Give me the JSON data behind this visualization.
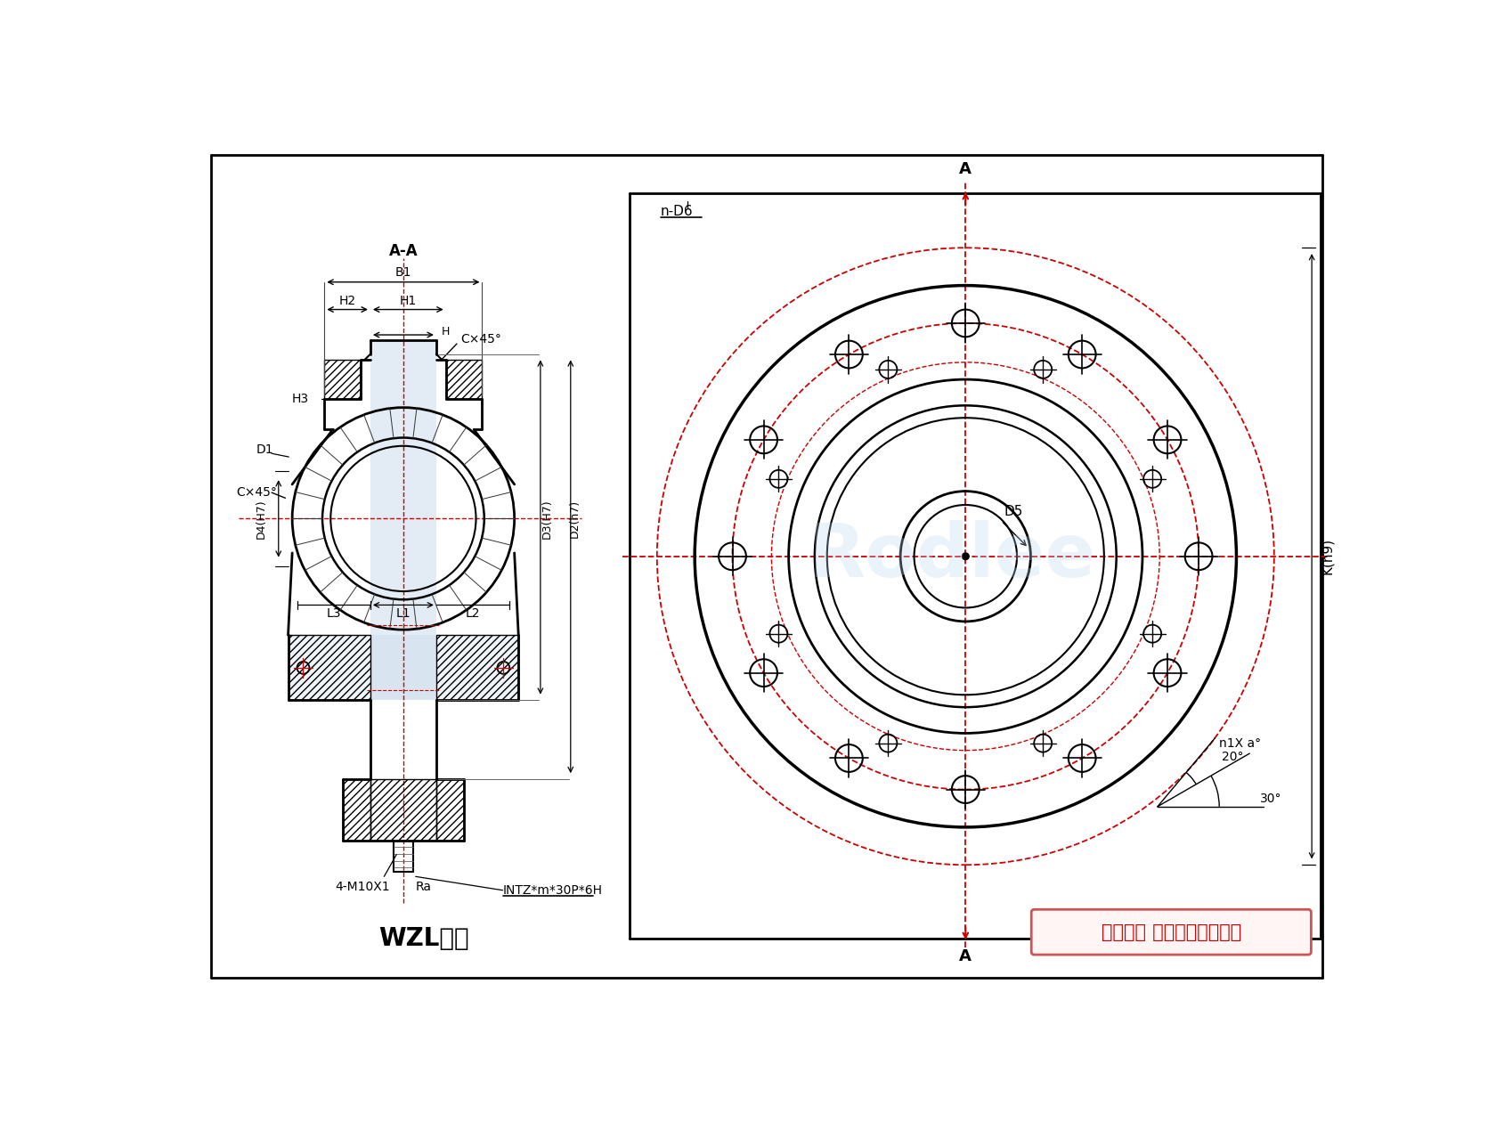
{
  "bg_color": "#ffffff",
  "line_color": "#000000",
  "red_color": "#cc0000",
  "blue_color": "#b0c8e0",
  "title": "WZL系列",
  "copyright": "版权所有 侵权必被严厉追究",
  "watermark": "Rodlee",
  "left_labels": {
    "AA": "A-A",
    "B1": "B1",
    "H1": "H1",
    "H2": "H2",
    "H": "H",
    "H3": "H3",
    "C45_top": "C×45°",
    "C45_left": "C×45°",
    "D1": "D1",
    "D4H7": "D4(H7)",
    "L1": "L1",
    "L2": "L2",
    "L3": "L3",
    "D3H7": "D3(H7)",
    "D2h7": "D2(h7)",
    "bolt": "4-M10X1",
    "Ra": "Ra",
    "INTZ": "INTZ*m*30P*6H"
  },
  "right_labels": {
    "A_top": "A",
    "A_bottom": "A",
    "D5": "D5",
    "nD6": "n-D6",
    "Kh9": "K(h9)",
    "angle20": "20°",
    "angle30": "30°",
    "nXa": "n1X a°"
  }
}
